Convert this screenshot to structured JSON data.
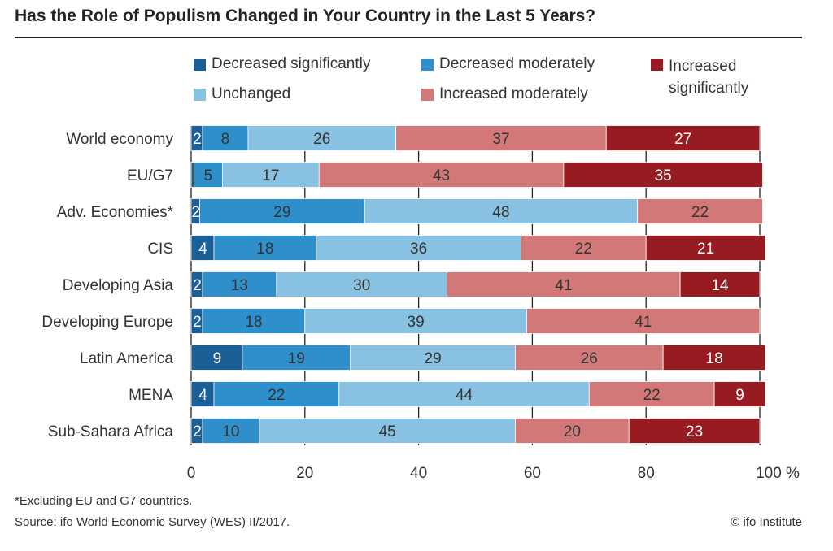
{
  "chart_data": {
    "type": "bar",
    "orientation": "horizontal-stacked",
    "title": "Has the Role of Populism Changed in Your Country in the Last 5 Years?",
    "categories": [
      "World economy",
      "EU/G7",
      "Adv. Economies*",
      "CIS",
      "Developing Asia",
      "Developing Europe",
      "Latin America",
      "MENA",
      "Sub-Sahara Africa"
    ],
    "series": [
      {
        "name": "Decreased significantly",
        "color": "#1b5f97",
        "values": [
          2,
          0.5,
          1.5,
          4,
          2,
          2,
          9,
          4,
          2
        ],
        "labels": [
          "2",
          "",
          "2",
          "4",
          "2",
          "2",
          "9",
          "4",
          "2"
        ]
      },
      {
        "name": "Decreased moderately",
        "color": "#2f8fca",
        "values": [
          8,
          5,
          29,
          18,
          13,
          18,
          19,
          22,
          10
        ],
        "labels": [
          "8",
          "5",
          "29",
          "18",
          "13",
          "18",
          "19",
          "22",
          "10"
        ]
      },
      {
        "name": "Unchanged",
        "color": "#88c1e1",
        "values": [
          26,
          17,
          48,
          36,
          30,
          39,
          29,
          44,
          45
        ],
        "labels": [
          "26",
          "17",
          "48",
          "36",
          "30",
          "39",
          "29",
          "44",
          "45"
        ]
      },
      {
        "name": "Increased moderately",
        "color": "#d37878",
        "values": [
          37,
          43,
          22,
          22,
          41,
          41,
          26,
          22,
          20
        ],
        "labels": [
          "37",
          "43",
          "22",
          "22",
          "41",
          "41",
          "26",
          "22",
          "20"
        ]
      },
      {
        "name": "Increased significantly",
        "color": "#961c22",
        "values": [
          27,
          35,
          0,
          21,
          14,
          0,
          18,
          9,
          23
        ],
        "labels": [
          "27",
          "35",
          "",
          "21",
          "14",
          "",
          "18",
          "9",
          "23"
        ]
      }
    ],
    "xlim": [
      0,
      100
    ],
    "xticks": [
      "0",
      "20",
      "40",
      "60",
      "80",
      "100 %"
    ],
    "grid": true,
    "legend": "top"
  },
  "footnote": "*Excluding EU and G7 countries.",
  "source": "Source: ifo World Economic Survey (WES) II/2017.",
  "copyright": "© ifo Institute"
}
